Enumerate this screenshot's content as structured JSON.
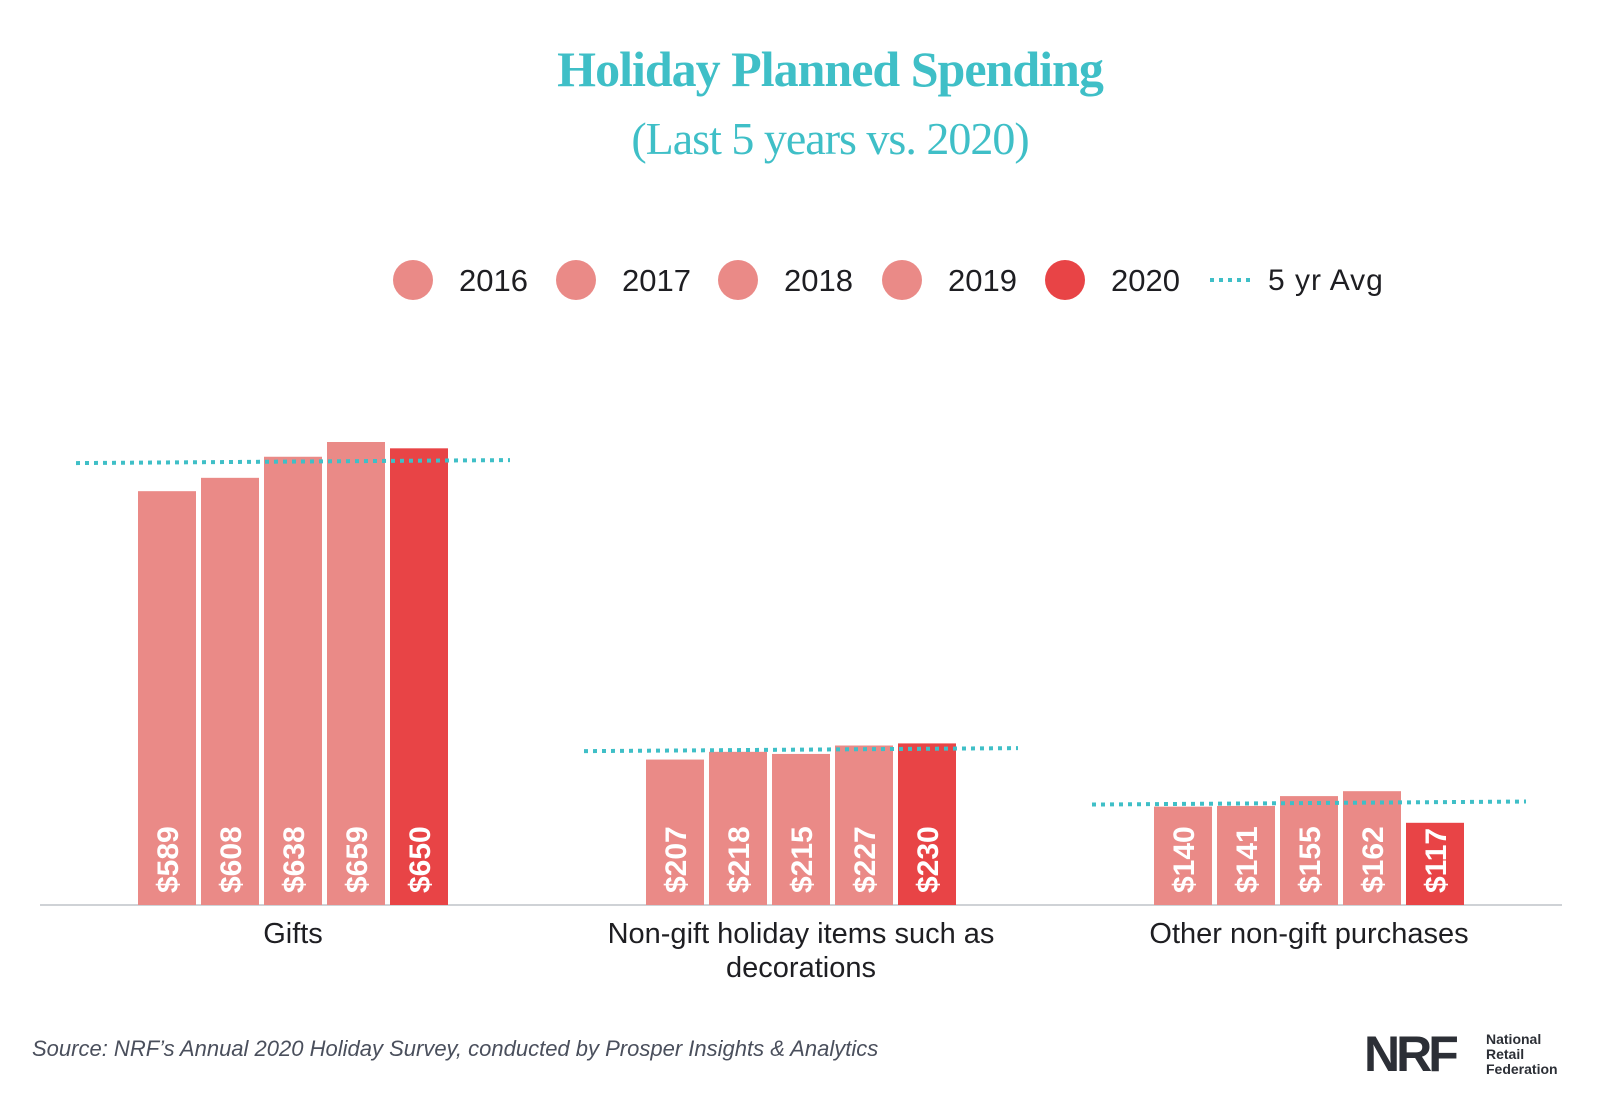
{
  "title": "Holiday Planned Spending",
  "subtitle": "(Last 5 years vs. 2020)",
  "source": "Source: NRF’s Annual 2020 Holiday Survey, conducted by Prosper Insights & Analytics",
  "logo": {
    "mark": "NRF",
    "line1": "National",
    "line2": "Retail",
    "line3": "Federation"
  },
  "chart_data": {
    "type": "bar",
    "title": "Holiday Planned Spending",
    "subtitle": "(Last 5 years vs. 2020)",
    "categories": [
      "Gifts",
      "Non-gift holiday items such as decorations",
      "Other non-gift purchases"
    ],
    "category_lines": [
      [
        "Gifts"
      ],
      [
        "Non-gift holiday items such as",
        "decorations"
      ],
      [
        "Other non-gift purchases"
      ]
    ],
    "series": [
      {
        "name": "2016",
        "values": [
          589,
          207,
          140
        ],
        "labels": [
          "$589",
          "$207",
          "$140"
        ],
        "color": "#ea8a87"
      },
      {
        "name": "2017",
        "values": [
          608,
          218,
          141
        ],
        "labels": [
          "$608",
          "$218",
          "$141"
        ],
        "color": "#ea8a87"
      },
      {
        "name": "2018",
        "values": [
          638,
          215,
          155
        ],
        "labels": [
          "$638",
          "$215",
          "$155"
        ],
        "color": "#ea8a87"
      },
      {
        "name": "2019",
        "values": [
          659,
          227,
          162
        ],
        "labels": [
          "$659",
          "$227",
          "$162"
        ],
        "color": "#ea8a87"
      },
      {
        "name": "2020",
        "values": [
          650,
          230,
          117
        ],
        "labels": [
          "$650",
          "$230",
          "$117"
        ],
        "color": "#e84446"
      }
    ],
    "average": {
      "name": "5 yr Avg",
      "values": [
        629,
        219,
        143
      ],
      "color": "#3fbfc7"
    },
    "ylim": [
      0,
      700
    ],
    "xlabel": "",
    "ylabel": "",
    "grid": false,
    "legend": "top"
  }
}
